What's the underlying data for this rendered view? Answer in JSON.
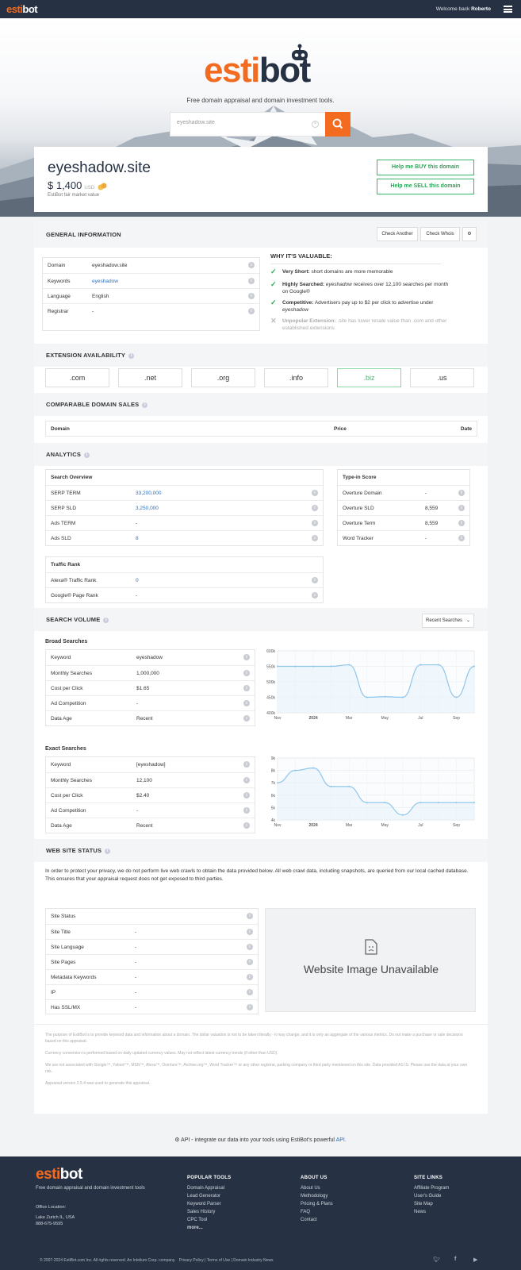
{
  "header": {
    "logo_a": "esti",
    "logo_b": "bot",
    "welcome": "Welcome back",
    "user": "Roberto"
  },
  "hero": {
    "logo_a": "esti",
    "logo_b": "bot",
    "tagline": "Free domain appraisal and domain investment tools.",
    "search_value": "eyeshadow.site"
  },
  "domain": {
    "name": "eyeshadow.site",
    "price": "$ 1,400",
    "currency": "USD",
    "subtitle": "EstiBot fair market value",
    "buy_label": "Help me BUY this domain",
    "sell_label": "Help me SELL this domain"
  },
  "general": {
    "title": "GENERAL INFORMATION",
    "check_another": "Check Another",
    "check_whois": "Check Whois",
    "rows": [
      {
        "k": "Domain",
        "v": "eyeshadow.site"
      },
      {
        "k": "Keywords",
        "v": "eyeshadow"
      },
      {
        "k": "Language",
        "v": "English"
      },
      {
        "k": "Registrar",
        "v": "-"
      }
    ],
    "why_title": "WHY IT'S VALUABLE:",
    "why": [
      {
        "b": "Very Short:",
        "t": "short domains are more memorable"
      },
      {
        "b": "Highly Searched:",
        "t": "eyeshadow receives over 12,100 searches per month on Google®"
      },
      {
        "b": "Competitive:",
        "t": "Advertisers pay up to $2 per click to advertise under eyeshadow"
      },
      {
        "b": "Unpopular Extension:",
        "t": ".site has lower resale value than .com and other established extensions"
      }
    ]
  },
  "extensions": {
    "title": "EXTENSION AVAILABILITY",
    "items": [
      ".com",
      ".net",
      ".org",
      ".info",
      ".biz",
      ".us"
    ]
  },
  "comparable": {
    "title": "COMPARABLE DOMAIN SALES",
    "col_domain": "Domain",
    "col_price": "Price",
    "col_date": "Date"
  },
  "analytics": {
    "title": "ANALYTICS",
    "serp_head": "Search Overview",
    "serp": [
      {
        "k": "SERP TERM",
        "v": "33,200,000"
      },
      {
        "k": "SERP SLD",
        "v": "3,250,000"
      },
      {
        "k": "Ads TERM",
        "v": "-"
      },
      {
        "k": "Ads SLD",
        "v": "8"
      }
    ],
    "type_head": "Type-in Score",
    "type": [
      {
        "k": "Overture Domain",
        "v": "-"
      },
      {
        "k": "Overture SLD",
        "v": "8,559"
      },
      {
        "k": "Overture Term",
        "v": "8,559"
      },
      {
        "k": "Word Tracker",
        "v": "-"
      }
    ],
    "traffic_head": "Traffic Rank",
    "traffic": [
      {
        "k": "Alexa® Traffic Rank",
        "v": "0"
      },
      {
        "k": "Google® Page Rank",
        "v": "-"
      }
    ]
  },
  "volume": {
    "title": "SEARCH VOLUME",
    "select": "Recent Searches",
    "broad_title": "Broad Searches",
    "broad": [
      {
        "k": "Keyword",
        "v": "eyeshadow"
      },
      {
        "k": "Monthly Searches",
        "v": "1,000,000"
      },
      {
        "k": "Cost per Click",
        "v": "$1.65"
      },
      {
        "k": "Ad Competition",
        "v": "-"
      },
      {
        "k": "Data Age",
        "v": "Recent"
      }
    ],
    "exact_title": "Exact Searches",
    "exact": [
      {
        "k": "Keyword",
        "v": "[eyeshadow]"
      },
      {
        "k": "Monthly Searches",
        "v": "12,100"
      },
      {
        "k": "Cost per Click",
        "v": "$2.40"
      },
      {
        "k": "Ad Competition",
        "v": "-"
      },
      {
        "k": "Data Age",
        "v": "Recent"
      }
    ]
  },
  "chart_data": [
    {
      "type": "line",
      "x": [
        "Nov",
        "Dec",
        "2024",
        "Feb",
        "Mar",
        "Apr",
        "May",
        "Jun",
        "Jul",
        "Aug",
        "Sep",
        "Oct"
      ],
      "values": [
        550000,
        550000,
        550000,
        550000,
        555000,
        450000,
        452000,
        450000,
        555000,
        555000,
        450000,
        550000
      ],
      "ylim": [
        400000,
        600000
      ],
      "yticks": [
        "400k",
        "450k",
        "500k",
        "550k",
        "600k"
      ],
      "xticks": [
        "Nov",
        "2024",
        "Mar",
        "May",
        "Jul",
        "Sep"
      ],
      "grid": true
    },
    {
      "type": "line",
      "x": [
        "Nov",
        "Dec",
        "2024",
        "Feb",
        "Mar",
        "Apr",
        "May",
        "Jun",
        "Jul",
        "Aug",
        "Sep",
        "Oct"
      ],
      "values": [
        7000,
        8000,
        8200,
        6700,
        6700,
        5400,
        5400,
        4400,
        5400,
        5400,
        5400,
        5400
      ],
      "ylim": [
        4000,
        9000
      ],
      "yticks": [
        "4k",
        "5k",
        "6k",
        "7k",
        "8k",
        "9k"
      ],
      "xticks": [
        "Nov",
        "2024",
        "Mar",
        "May",
        "Jul",
        "Sep"
      ],
      "grid": true
    }
  ],
  "website": {
    "title": "WEB SITE STATUS",
    "para": "In order to protect your privacy, we do not perform live web crawls to obtain the data provided below. All web crawl data, including snapshots, are queried from our local cached database. This ensures that your appraisal request does not get exposed to third parties.",
    "rows": [
      {
        "k": "Site Status",
        "v": ""
      },
      {
        "k": "Site Title",
        "v": "-"
      },
      {
        "k": "Site Language",
        "v": "-"
      },
      {
        "k": "Site Pages",
        "v": "-"
      },
      {
        "k": "Metadata Keywords",
        "v": "-"
      },
      {
        "k": "IP",
        "v": "-"
      },
      {
        "k": "Has SSL/MX",
        "v": "-"
      }
    ],
    "image_text": "Website Image Unavailable"
  },
  "disclaimer": [
    "The purpose of EstiBot is to provide keyword data and information about a domain. The dollar valuation is not to be taken literally - it may change, and it is only an aggregate of the various metrics. Do not make a purchase or sale decisions based on this appraisal.",
    "Currency conversion is performed based on daily updated currency values. May not reflect latest currency trends (if other than USD).",
    "We are not associated with Google™, Yahoo!™, MSN™, Alexa™, Overture™, Archive.org™, Word Tracker™ or any other registrar, parking company or third party mentioned on this site. Data provided AS IS. Please use the data at your own risk.",
    "Appraisal version 2.5.4 was used to generate this appraisal."
  ],
  "api": {
    "text": "API - integrate our data into your tools using EstiBot's powerful",
    "link": "API."
  },
  "footer": {
    "logo_a": "esti",
    "logo_b": "bot",
    "tagline": "Free domain appraisal and domain investment tools",
    "loc_label": "Office Location:",
    "loc": "Lake Zurich IL, USA",
    "phone": "888-675-9595",
    "col1_title": "POPULAR TOOLS",
    "col1": [
      "Domain Appraisal",
      "Lead Generator",
      "Keyword Parser",
      "Sales History",
      "CPC Tool",
      "more..."
    ],
    "col2_title": "ABOUT US",
    "col2": [
      "About Us",
      "Methodology",
      "Pricing & Plans",
      "FAQ",
      "Contact"
    ],
    "col3_title": "SITE LINKS",
    "col3": [
      "Affiliate Program",
      "User's Guide",
      "Site Map",
      "News"
    ],
    "copyright": "© 2007-2024 EstiBot.com Inc. All rights reserved. An Intelium Corp. company.",
    "privacy": "Privacy Policy | Terms of Use",
    "dif": "| Domain Industry News"
  },
  "colors": {
    "accent": "#f26b21",
    "navy": "#263244",
    "green": "#3bb56a",
    "link": "#2c6fbf"
  }
}
